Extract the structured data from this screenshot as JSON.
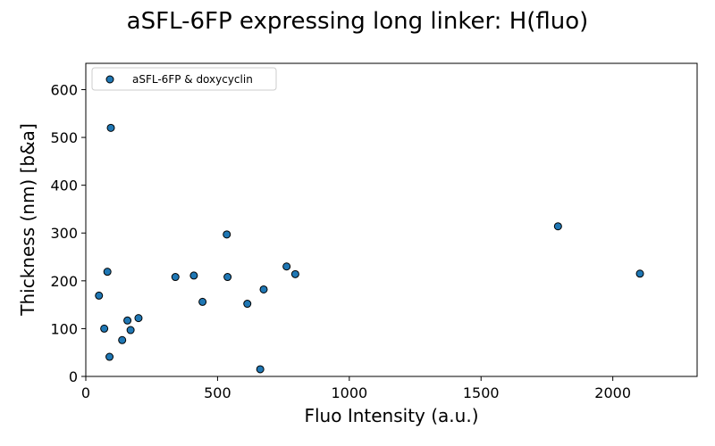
{
  "chart_data": {
    "type": "scatter",
    "title": "aSFL-6FP expressing long linker: H(fluo)",
    "xlabel": "Fluo Intensity (a.u.)",
    "ylabel": "Thickness (nm) [b&a]",
    "xlim": [
      0,
      2320
    ],
    "ylim": [
      0,
      655
    ],
    "xticks": [
      0,
      500,
      1000,
      1500,
      2000
    ],
    "yticks": [
      0,
      100,
      200,
      300,
      400,
      500,
      600
    ],
    "grid": false,
    "legend_position": "top-left",
    "series": [
      {
        "name": "aSFL-6FP & doxycyclin",
        "color": "#1f77b4",
        "edge_color": "#000000",
        "points": [
          {
            "x": 50,
            "y": 169
          },
          {
            "x": 70,
            "y": 100
          },
          {
            "x": 82,
            "y": 219
          },
          {
            "x": 90,
            "y": 41
          },
          {
            "x": 95,
            "y": 520
          },
          {
            "x": 138,
            "y": 76
          },
          {
            "x": 158,
            "y": 117
          },
          {
            "x": 170,
            "y": 97
          },
          {
            "x": 200,
            "y": 122
          },
          {
            "x": 340,
            "y": 208
          },
          {
            "x": 410,
            "y": 211
          },
          {
            "x": 443,
            "y": 156
          },
          {
            "x": 535,
            "y": 297
          },
          {
            "x": 538,
            "y": 208
          },
          {
            "x": 613,
            "y": 152
          },
          {
            "x": 662,
            "y": 15
          },
          {
            "x": 675,
            "y": 182
          },
          {
            "x": 762,
            "y": 230
          },
          {
            "x": 795,
            "y": 214
          },
          {
            "x": 1792,
            "y": 314
          },
          {
            "x": 2103,
            "y": 215
          }
        ]
      }
    ]
  }
}
